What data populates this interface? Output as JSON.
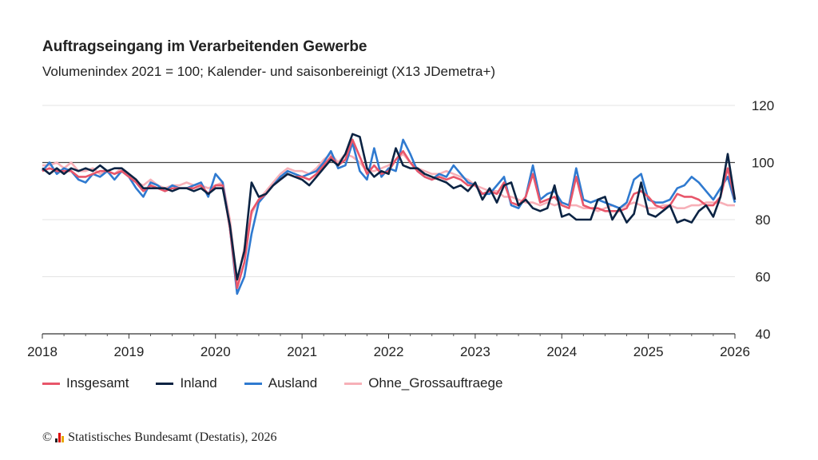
{
  "chart_data": {
    "type": "line",
    "title": "Auftragseingang im Verarbeitenden Gewerbe",
    "subtitle": "Volumenindex 2021 = 100; Kalender- und saisonbereinigt (X13 JDemetra+)",
    "x_start": "2018-01",
    "x_frequency": "monthly",
    "x_ticks": [
      "2018",
      "2019",
      "2020",
      "2021",
      "2022",
      "2023",
      "2024",
      "2025",
      "2026"
    ],
    "ylim": [
      40,
      120
    ],
    "y_ticks": [
      "40",
      "60",
      "80",
      "100",
      "120"
    ],
    "reference_line": 100,
    "grid": true,
    "legend_position": "bottom",
    "series": [
      {
        "name": "Insgesamt",
        "color": "#e8566a",
        "values": [
          97,
          98,
          97,
          97,
          97,
          95,
          95,
          96,
          97,
          97,
          96,
          97,
          95,
          93,
          90,
          92,
          91,
          90,
          91,
          91,
          91,
          91,
          92,
          89,
          92,
          92,
          77,
          56,
          65,
          83,
          87,
          89,
          92,
          94,
          96,
          95,
          95,
          94,
          96,
          99,
          102,
          99,
          101,
          108,
          102,
          96,
          99,
          96,
          97,
          101,
          104,
          100,
          97,
          95,
          94,
          95,
          94,
          95,
          94,
          92,
          92,
          89,
          90,
          89,
          93,
          86,
          85,
          88,
          96,
          86,
          87,
          88,
          85,
          84,
          95,
          85,
          84,
          84,
          83,
          83,
          83,
          84,
          89,
          90,
          88,
          85,
          84,
          85,
          89,
          88,
          88,
          87,
          85,
          85,
          88,
          98,
          87
        ]
      },
      {
        "name": "Inland",
        "color": "#0b2343",
        "values": [
          98,
          96,
          98,
          96,
          98,
          97,
          98,
          97,
          99,
          97,
          98,
          98,
          96,
          94,
          91,
          91,
          91,
          91,
          90,
          91,
          91,
          90,
          91,
          89,
          91,
          91,
          78,
          59,
          69,
          93,
          88,
          89,
          92,
          94,
          96,
          95,
          94,
          92,
          95,
          98,
          101,
          99,
          103,
          110,
          109,
          98,
          95,
          97,
          96,
          105,
          99,
          98,
          98,
          96,
          95,
          94,
          93,
          91,
          92,
          90,
          93,
          87,
          91,
          86,
          92,
          93,
          85,
          87,
          84,
          83,
          84,
          92,
          81,
          82,
          80,
          80,
          80,
          87,
          88,
          80,
          84,
          79,
          82,
          93,
          82,
          81,
          83,
          85,
          79,
          80,
          79,
          83,
          85,
          81,
          88,
          103,
          87
        ]
      },
      {
        "name": "Ausland",
        "color": "#2f7ad0",
        "values": [
          97,
          100,
          96,
          98,
          97,
          94,
          93,
          96,
          95,
          97,
          94,
          97,
          95,
          91,
          88,
          93,
          92,
          90,
          92,
          91,
          91,
          92,
          93,
          88,
          96,
          93,
          77,
          54,
          60,
          75,
          86,
          89,
          92,
          95,
          97,
          96,
          95,
          96,
          97,
          100,
          104,
          98,
          99,
          107,
          97,
          94,
          105,
          95,
          98,
          97,
          108,
          103,
          97,
          95,
          94,
          96,
          95,
          99,
          96,
          93,
          92,
          89,
          89,
          92,
          95,
          85,
          84,
          88,
          99,
          87,
          89,
          90,
          86,
          85,
          98,
          87,
          86,
          87,
          86,
          85,
          84,
          86,
          94,
          96,
          87,
          86,
          86,
          87,
          91,
          92,
          95,
          93,
          90,
          87,
          91,
          95,
          86
        ]
      },
      {
        "name": "Ohne_Grossauftraege",
        "color": "#f7b0b8",
        "values": [
          99,
          99,
          100,
          98,
          100,
          97,
          97,
          98,
          96,
          97,
          96,
          98,
          96,
          93,
          92,
          94,
          92,
          91,
          92,
          92,
          93,
          92,
          92,
          91,
          92,
          93,
          80,
          58,
          70,
          82,
          87,
          90,
          93,
          96,
          98,
          97,
          97,
          96,
          98,
          101,
          103,
          100,
          103,
          102,
          100,
          97,
          97,
          98,
          99,
          101,
          103,
          100,
          98,
          97,
          96,
          96,
          97,
          96,
          95,
          94,
          92,
          91,
          90,
          90,
          88,
          88,
          87,
          86,
          86,
          85,
          86,
          85,
          86,
          85,
          85,
          84,
          84,
          83,
          84,
          85,
          84,
          85,
          86,
          85,
          84,
          84,
          85,
          85,
          84,
          84,
          85,
          85,
          86,
          86,
          86,
          85,
          85
        ]
      }
    ]
  },
  "footer": {
    "text": "Statistisches Bundesamt (Destatis), 2026",
    "copyright": "©"
  }
}
